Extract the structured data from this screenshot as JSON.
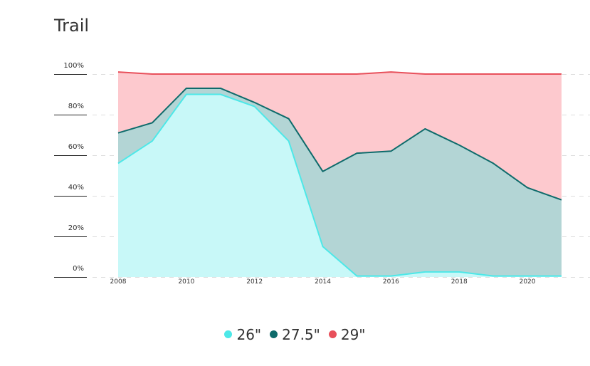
{
  "chart_data": {
    "type": "area",
    "stacked": true,
    "title": "Trail",
    "x": [
      2008,
      2009,
      2010,
      2011,
      2012,
      2013,
      2014,
      2015,
      2016,
      2017,
      2018,
      2019,
      2020,
      2021
    ],
    "xticks": [
      "2008",
      "2010",
      "2012",
      "2014",
      "2016",
      "2018",
      "2020"
    ],
    "yticks": [
      "0%",
      "20%",
      "40%",
      "60%",
      "80%",
      "100%"
    ],
    "ylim": [
      0,
      100
    ],
    "grid": true,
    "legend_position": "bottom-center",
    "series": [
      {
        "name": "26\"",
        "color": "#4de8e8",
        "fill": "#c8f8f8",
        "values": [
          56,
          67,
          90,
          90,
          84,
          67,
          15,
          0.5,
          0.5,
          2.5,
          2.5,
          0.5,
          0.5,
          0.5
        ]
      },
      {
        "name": "27.5\"",
        "color": "#0e6b6b",
        "fill": "#b3d5d5",
        "values": [
          71,
          76,
          93,
          93,
          86,
          78,
          52,
          61,
          62,
          73,
          65,
          56,
          44,
          38
        ]
      },
      {
        "name": "29\"",
        "color": "#e8505b",
        "fill": "#fdc9ce",
        "values": [
          101,
          100,
          100,
          100,
          100,
          100,
          100,
          100,
          101,
          100,
          100,
          100,
          100,
          100
        ]
      }
    ]
  }
}
